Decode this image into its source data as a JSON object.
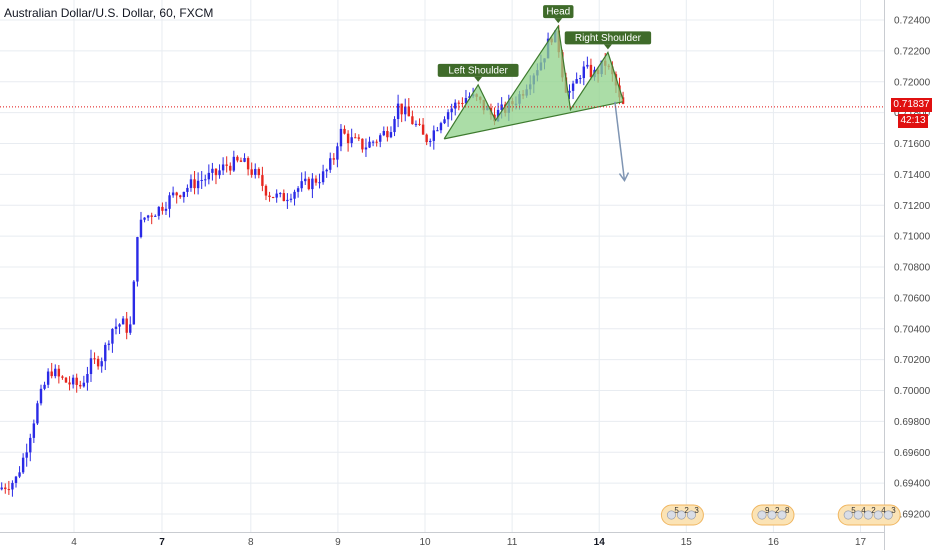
{
  "chart_data": {
    "type": "candlestick",
    "title": "Australian Dollar/U.S. Dollar, 60, FXCM",
    "current_price": "0.71837",
    "countdown": "42:13",
    "ylim": [
      0.6908,
      0.7253
    ],
    "y_ticks": [
      "0.72400",
      "0.72200",
      "0.72000",
      "0.71800",
      "0.71600",
      "0.71400",
      "0.71200",
      "0.71000",
      "0.70800",
      "0.70600",
      "0.70400",
      "0.70200",
      "0.70000",
      "0.69800",
      "0.69600",
      "0.69400",
      "0.69200"
    ],
    "y_tick_values": [
      0.724,
      0.722,
      0.72,
      0.718,
      0.716,
      0.714,
      0.712,
      0.71,
      0.708,
      0.706,
      0.704,
      0.702,
      0.7,
      0.698,
      0.696,
      0.694,
      0.692
    ],
    "x_ticks": [
      {
        "label": "4",
        "t": 0.83,
        "bold": false
      },
      {
        "label": "7",
        "t": 1.84,
        "bold": true
      },
      {
        "label": "8",
        "t": 2.86,
        "bold": false
      },
      {
        "label": "9",
        "t": 3.86,
        "bold": false
      },
      {
        "label": "10",
        "t": 4.86,
        "bold": false
      },
      {
        "label": "11",
        "t": 5.86,
        "bold": false
      },
      {
        "label": "14",
        "t": 6.86,
        "bold": true
      },
      {
        "label": "15",
        "t": 7.86,
        "bold": false
      },
      {
        "label": "16",
        "t": 8.86,
        "bold": false
      },
      {
        "label": "17",
        "t": 9.86,
        "bold": false
      }
    ],
    "colors": {
      "up": "#2a2ae6",
      "down": "#e6261f",
      "pattern_fill": "#8fd18a",
      "pattern_line": "#3d7a2e",
      "label_bg": "#3f6b2a",
      "price_line": "#e01010",
      "arrow": "#7f95b3",
      "grid": "#e8ecf1"
    },
    "pattern_points": [
      {
        "t": 5.08,
        "p": 0.7163
      },
      {
        "t": 5.47,
        "p": 0.7198
      },
      {
        "t": 5.67,
        "p": 0.7175
      },
      {
        "t": 6.39,
        "p": 0.7236
      },
      {
        "t": 6.53,
        "p": 0.7182
      },
      {
        "t": 6.96,
        "p": 0.7219
      },
      {
        "t": 7.13,
        "p": 0.7189
      }
    ],
    "neckline": [
      {
        "t": 5.08,
        "p": 0.7163
      },
      {
        "t": 7.13,
        "p": 0.7187
      }
    ],
    "arrow": {
      "from": {
        "t": 7.04,
        "p": 0.7187
      },
      "to": {
        "t": 7.15,
        "p": 0.7136
      }
    },
    "annotations": [
      {
        "label": "Left Shoulder",
        "t": 5.47,
        "p": 0.7198
      },
      {
        "label": "Head",
        "t": 6.39,
        "p": 0.7236
      },
      {
        "label": "Right Shoulder",
        "t": 6.96,
        "p": 0.7219
      }
    ],
    "events": [
      {
        "t": 7.62,
        "labels": [
          "5",
          "2",
          "3"
        ]
      },
      {
        "t": 8.66,
        "labels": [
          "9",
          "2",
          "8"
        ]
      },
      {
        "t": 9.65,
        "labels": [
          "5",
          "4",
          "2",
          "4",
          "3"
        ]
      }
    ]
  }
}
